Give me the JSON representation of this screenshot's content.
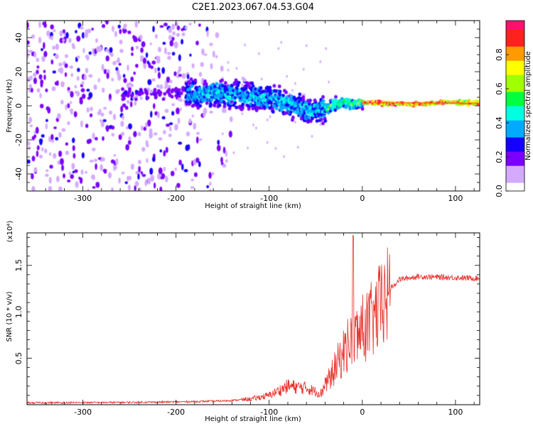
{
  "title": "C2E1.2023.067.04.53.G04",
  "chart_data": [
    {
      "type": "heatmap",
      "xlabel": "Height of straight line (km)",
      "ylabel": "Frequency (Hz)",
      "xlim": [
        -360,
        126
      ],
      "ylim": [
        -50,
        50
      ],
      "x_ticks": [
        "-300",
        "-200",
        "-100",
        "0",
        "100"
      ],
      "y_ticks": [
        "-40",
        "-20",
        "0",
        "20",
        "40"
      ],
      "colorbar": {
        "label": "Normalized spectral amplitude",
        "range": [
          0,
          1
        ],
        "ticks": [
          "0.0",
          "0.2",
          "0.4",
          "0.6",
          "0.8"
        ],
        "colors": [
          "#ffffff",
          "#d4aaff",
          "#7a00ff",
          "#1400ff",
          "#00aaff",
          "#00ffe0",
          "#00ff40",
          "#a0ff00",
          "#ffff00",
          "#ff9a00",
          "#ff2020",
          "#ff1070"
        ]
      },
      "ridge_centre_hz": [
        {
          "x": -190,
          "y": 7
        },
        {
          "x": -150,
          "y": 7
        },
        {
          "x": -120,
          "y": 6
        },
        {
          "x": -95,
          "y": 4
        },
        {
          "x": -80,
          "y": 1
        },
        {
          "x": -65,
          "y": -2
        },
        {
          "x": -50,
          "y": -3
        },
        {
          "x": -40,
          "y": -2
        },
        {
          "x": -30,
          "y": 1
        },
        {
          "x": -20,
          "y": 2
        },
        {
          "x": -10,
          "y": 1
        },
        {
          "x": 0,
          "y": 2
        },
        {
          "x": 50,
          "y": 1
        },
        {
          "x": 90,
          "y": 2
        },
        {
          "x": 126,
          "y": 1.5
        }
      ],
      "grid": false
    },
    {
      "type": "line",
      "xlabel": "Height of straight line (km)",
      "ylabel": "SNR (10 * v/v)",
      "y_multiplier": "(x10⁴)",
      "xlim": [
        -360,
        126
      ],
      "ylim": [
        0,
        1.85
      ],
      "x_ticks": [
        "-300",
        "-200",
        "-100",
        "0",
        "100"
      ],
      "y_ticks": [
        "0.5",
        "1.0",
        "1.5"
      ],
      "series": [
        {
          "color": "#e8302c",
          "envelope": [
            {
              "x": -360,
              "y": 0.02
            },
            {
              "x": -250,
              "y": 0.025
            },
            {
              "x": -200,
              "y": 0.03
            },
            {
              "x": -150,
              "y": 0.04
            },
            {
              "x": -120,
              "y": 0.06
            },
            {
              "x": -100,
              "y": 0.1
            },
            {
              "x": -80,
              "y": 0.2
            },
            {
              "x": -60,
              "y": 0.18
            },
            {
              "x": -45,
              "y": 0.12
            },
            {
              "x": -35,
              "y": 0.3
            },
            {
              "x": -25,
              "y": 0.5
            },
            {
              "x": -15,
              "y": 0.7
            },
            {
              "x": -5,
              "y": 0.8
            },
            {
              "x": 10,
              "y": 0.95
            },
            {
              "x": 25,
              "y": 1.2
            },
            {
              "x": 40,
              "y": 1.35
            },
            {
              "x": 60,
              "y": 1.38
            },
            {
              "x": 126,
              "y": 1.36
            }
          ],
          "spike": {
            "x": -10,
            "y": 1.82
          }
        }
      ],
      "grid": false
    }
  ]
}
